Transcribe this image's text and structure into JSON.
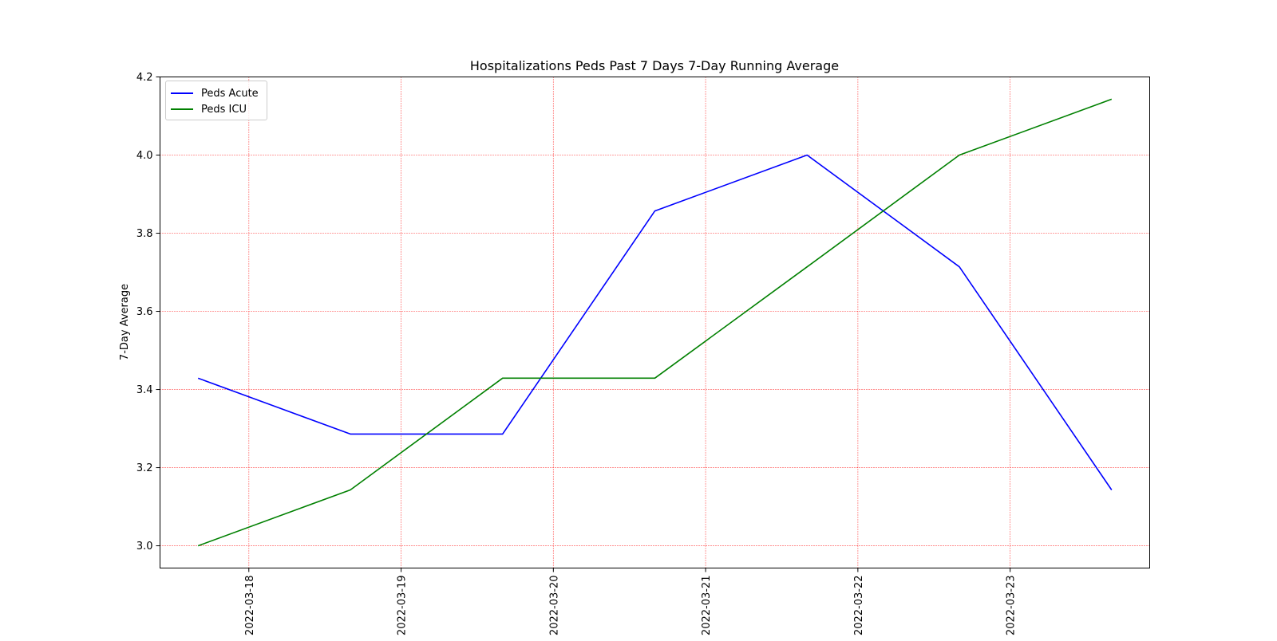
{
  "chart_data": {
    "type": "line",
    "title": "Hospitalizations Peds Past 7 Days 7-Day Running Average",
    "xlabel": "",
    "ylabel": "7-Day Average",
    "x": [
      "2022-03-17 16:00",
      "2022-03-18 16:00",
      "2022-03-19 16:00",
      "2022-03-20 16:00",
      "2022-03-21 16:00",
      "2022-03-22 16:00",
      "2022-03-23 16:00"
    ],
    "xticks": [
      "2022-03-18",
      "2022-03-19",
      "2022-03-20",
      "2022-03-21",
      "2022-03-22",
      "2022-03-23"
    ],
    "yticks": [
      "3.0",
      "3.2",
      "3.4",
      "3.6",
      "3.8",
      "4.0",
      "4.2"
    ],
    "ylim": [
      2.943,
      4.2
    ],
    "xlim": [
      "2022-03-17 10:00",
      "2022-03-23 22:00"
    ],
    "grid": true,
    "grid_color": "#ff0000",
    "legend_position": "upper-left",
    "series": [
      {
        "name": "Peds Acute",
        "color": "#0000ff",
        "values": [
          3.429,
          3.286,
          3.286,
          3.857,
          4.0,
          3.714,
          3.143
        ]
      },
      {
        "name": "Peds ICU",
        "color": "#008000",
        "values": [
          3.0,
          3.143,
          3.429,
          3.429,
          3.714,
          4.0,
          4.143
        ]
      }
    ]
  }
}
